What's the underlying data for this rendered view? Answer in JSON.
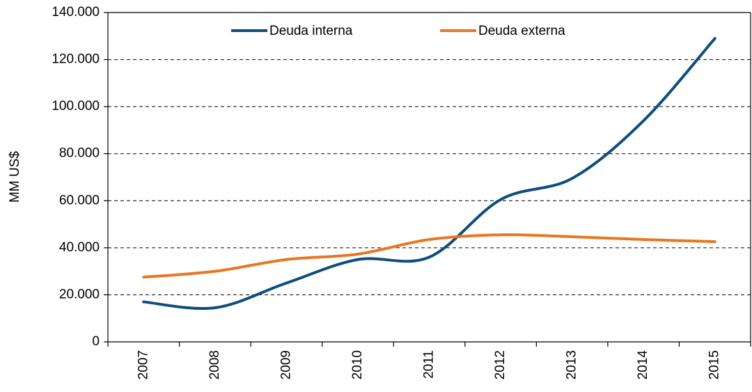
{
  "chart_data": {
    "type": "line",
    "y_label": "MM US$",
    "categories": [
      "2007",
      "2008",
      "2009",
      "2010",
      "2011",
      "2012",
      "2013",
      "2014",
      "2015"
    ],
    "series": [
      {
        "name": "Deuda interna",
        "color": "#0f4d7d",
        "values": [
          17000,
          14500,
          25000,
          35000,
          36000,
          60500,
          69500,
          94000,
          129000
        ]
      },
      {
        "name": "Deuda externa",
        "color": "#e87722",
        "values": [
          27500,
          30000,
          35000,
          37300,
          43500,
          45500,
          44700,
          43500,
          42600
        ]
      }
    ],
    "ylim": [
      0,
      140000
    ],
    "yticks": [
      0,
      {
        "value": 20000,
        "label": "20.000"
      },
      {
        "value": 40000,
        "label": "40.000"
      },
      {
        "value": 60000,
        "label": "60.000"
      },
      {
        "value": 80000,
        "label": "80.000"
      },
      {
        "value": 100000,
        "label": "100.000"
      },
      {
        "value": 120000,
        "label": "120.000"
      },
      {
        "value": 140000,
        "label": "140.000"
      }
    ],
    "grid": true,
    "legend": "top"
  }
}
